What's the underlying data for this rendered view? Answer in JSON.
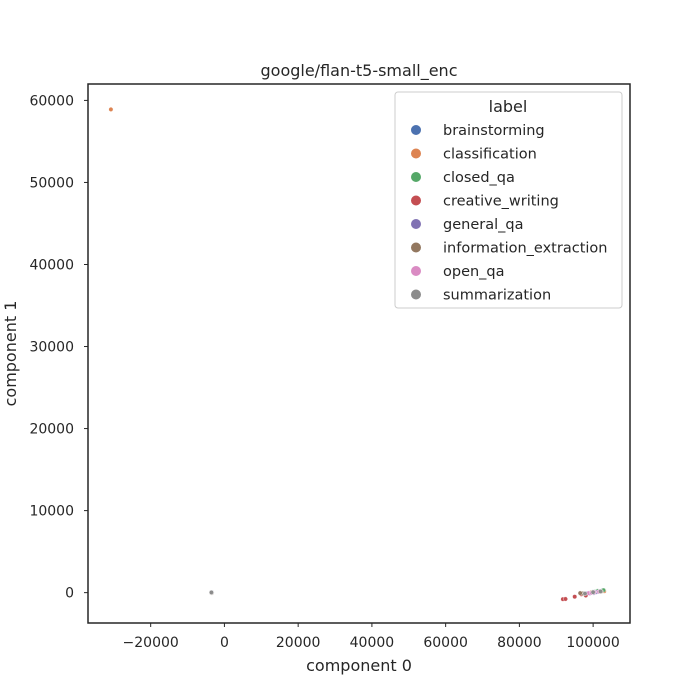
{
  "chart_data": {
    "type": "scatter",
    "title": "google/flan-t5-small_enc",
    "xlabel": "component 0",
    "ylabel": "component 1",
    "xlim": [
      -37000,
      110000
    ],
    "ylim": [
      -3700,
      62000
    ],
    "xticks": [
      -20000,
      0,
      20000,
      40000,
      60000,
      80000,
      100000
    ],
    "xtick_labels": [
      "−20000",
      "0",
      "20000",
      "40000",
      "60000",
      "80000",
      "100000"
    ],
    "yticks": [
      0,
      10000,
      20000,
      30000,
      40000,
      50000,
      60000
    ],
    "ytick_labels": [
      "0",
      "10000",
      "20000",
      "30000",
      "40000",
      "50000",
      "60000"
    ],
    "grid": false,
    "legend": {
      "title": "label",
      "placement": "top-right"
    },
    "series": [
      {
        "name": "brainstorming",
        "color": "#4c72b0",
        "points": [
          [
            -3500,
            0
          ],
          [
            -3400,
            30
          ],
          [
            101500,
            150
          ],
          [
            102500,
            250
          ],
          [
            100000,
            80
          ],
          [
            98500,
            -80
          ]
        ]
      },
      {
        "name": "classification",
        "color": "#dd8452",
        "points": [
          [
            -30800,
            58900
          ],
          [
            -3450,
            -60
          ],
          [
            103000,
            180
          ],
          [
            102000,
            100
          ],
          [
            97500,
            -150
          ],
          [
            99500,
            40
          ]
        ]
      },
      {
        "name": "closed_qa",
        "color": "#55a868",
        "points": [
          [
            -3480,
            20
          ],
          [
            102800,
            300
          ],
          [
            101200,
            200
          ],
          [
            100500,
            120
          ]
        ]
      },
      {
        "name": "creative_writing",
        "color": "#c44e52",
        "points": [
          [
            -3520,
            -20
          ],
          [
            91800,
            -800
          ],
          [
            92500,
            -780
          ],
          [
            95000,
            -500
          ],
          [
            96800,
            -200
          ],
          [
            98000,
            -350
          ]
        ]
      },
      {
        "name": "general_qa",
        "color": "#8172b3",
        "points": [
          [
            -3500,
            40
          ],
          [
            99000,
            -100
          ],
          [
            100800,
            60
          ],
          [
            101800,
            180
          ],
          [
            100200,
            -40
          ]
        ]
      },
      {
        "name": "information_extraction",
        "color": "#937860",
        "points": [
          [
            -3460,
            -30
          ],
          [
            97200,
            -100
          ],
          [
            96500,
            -50
          ],
          [
            102200,
            140
          ]
        ]
      },
      {
        "name": "open_qa",
        "color": "#da8bc3",
        "points": [
          [
            -3490,
            10
          ],
          [
            98800,
            -60
          ],
          [
            100300,
            50
          ],
          [
            101600,
            110
          ],
          [
            99600,
            -20
          ]
        ]
      },
      {
        "name": "summarization",
        "color": "#8c8c8c",
        "points": [
          [
            -3500,
            0
          ],
          [
            -3480,
            -20
          ],
          [
            -3520,
            30
          ],
          [
            100000,
            50
          ],
          [
            102000,
            150
          ],
          [
            97800,
            -120
          ]
        ]
      }
    ]
  }
}
